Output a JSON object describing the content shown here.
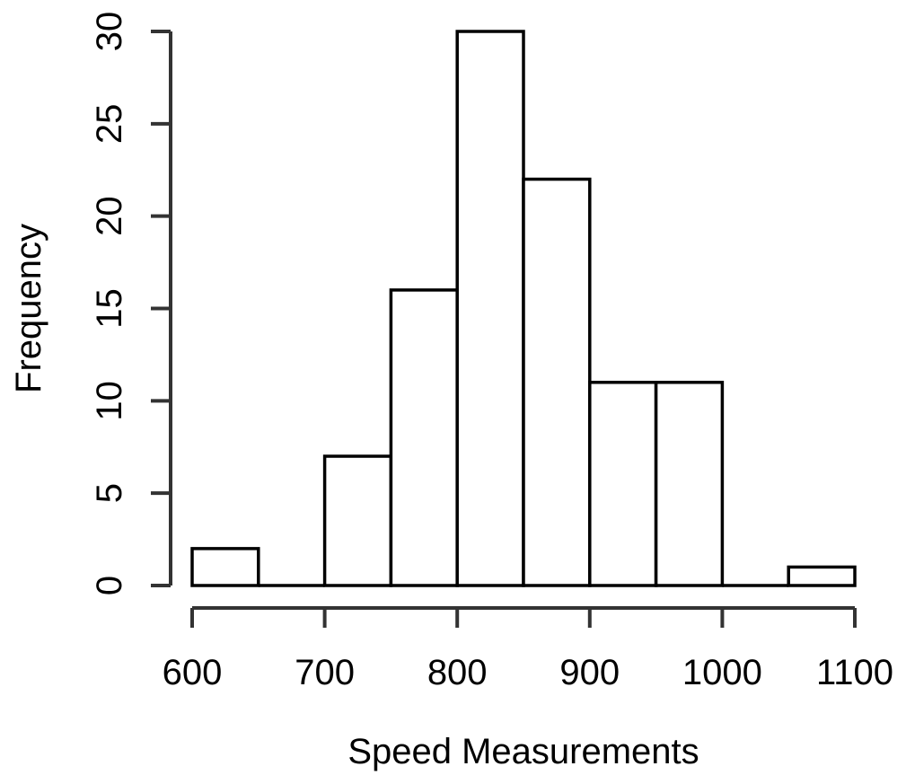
{
  "chart_data": {
    "type": "bar",
    "subtype": "histogram",
    "title": "",
    "xlabel": "Speed Measurements",
    "ylabel": "Frequency",
    "bin_edges": [
      600,
      650,
      700,
      750,
      800,
      850,
      900,
      950,
      1000,
      1050,
      1100
    ],
    "values": [
      2,
      0,
      7,
      16,
      30,
      22,
      11,
      11,
      0,
      1
    ],
    "xlim": [
      600,
      1100
    ],
    "ylim": [
      0,
      30
    ],
    "x_ticks": [
      600,
      700,
      800,
      900,
      1000,
      1100
    ],
    "x_tick_labels": [
      "600",
      "700",
      "800",
      "900",
      "1000",
      "1100"
    ],
    "y_ticks": [
      0,
      5,
      10,
      15,
      20,
      25,
      30
    ],
    "y_tick_labels": [
      "0",
      "5",
      "10",
      "15",
      "20",
      "25",
      "30"
    ],
    "grid": false,
    "legend": "none",
    "bar_fill": "#ffffff",
    "bar_stroke": "#000000"
  }
}
